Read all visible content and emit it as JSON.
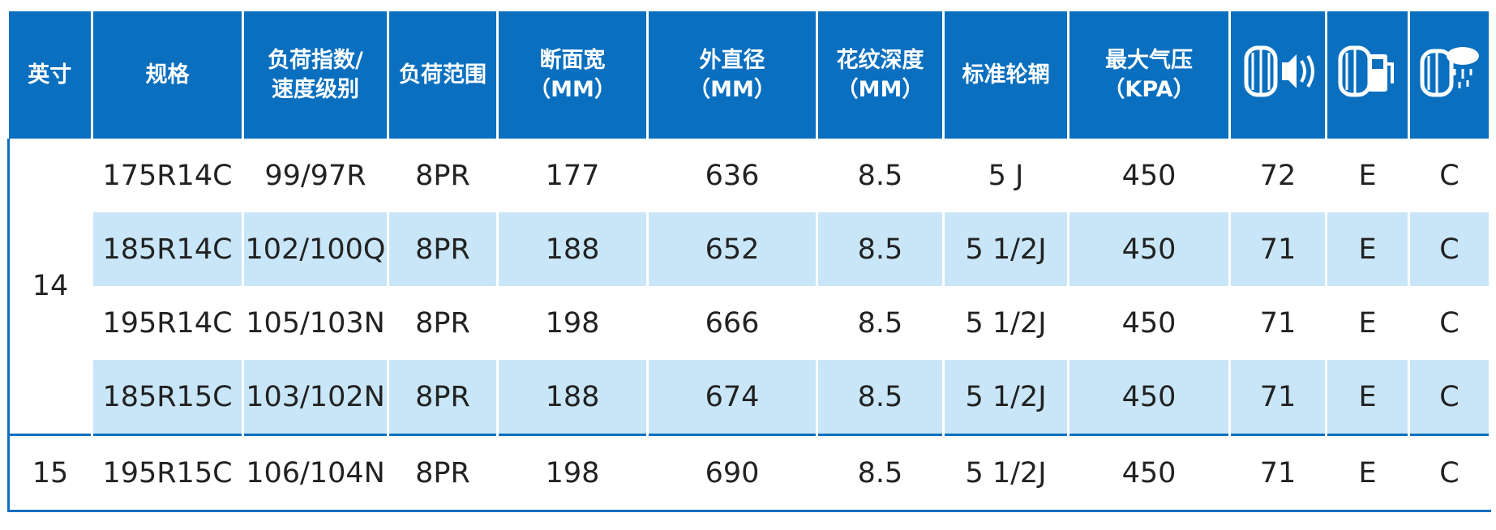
{
  "header": [
    [
      "英寸"
    ],
    [
      "规格"
    ],
    [
      "负荷指数/",
      "速度级别"
    ],
    [
      "负荷范围"
    ],
    [
      "断面宽",
      "（MM）"
    ],
    [
      "外直径",
      "（MM）"
    ],
    [
      "花纹深度",
      "（MM）"
    ],
    [
      "标准轮辋"
    ],
    [
      "最大气压",
      "（KPA）"
    ]
  ],
  "groups": [
    {
      "size": "14",
      "rows": [
        [
          "175R14C",
          "99/97R",
          "8PR",
          "177",
          "636",
          "8.5",
          "5 J",
          "450",
          "72",
          "E",
          "C"
        ],
        [
          "185R14C",
          "102/100Q",
          "8PR",
          "188",
          "652",
          "8.5",
          "5 1/2J",
          "450",
          "71",
          "E",
          "C"
        ],
        [
          "195R14C",
          "105/103N",
          "8PR",
          "198",
          "666",
          "8.5",
          "5 1/2J",
          "450",
          "71",
          "E",
          "C"
        ],
        [
          "185R15C",
          "103/102N",
          "8PR",
          "188",
          "674",
          "8.5",
          "5 1/2J",
          "450",
          "71",
          "E",
          "C"
        ]
      ]
    },
    {
      "size": "15",
      "rows": [
        [
          "195R15C",
          "106/104N",
          "8PR",
          "198",
          "690",
          "8.5",
          "5 1/2J",
          "450",
          "71",
          "E",
          "C"
        ]
      ]
    }
  ]
}
